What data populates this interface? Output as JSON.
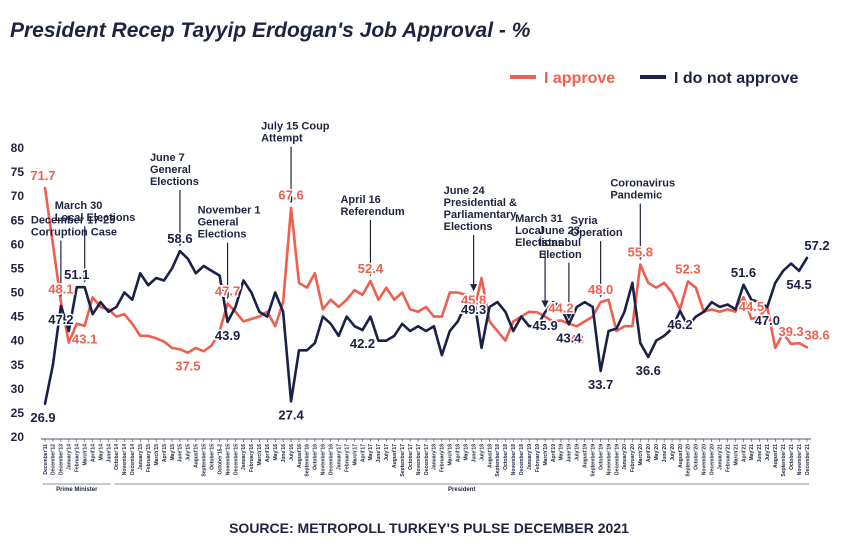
{
  "chart_data": {
    "type": "line",
    "title": "President Recep Tayyip Erdogan's Job Approval - %",
    "source": "SOURCE: METROPOLL TURKEY'S PULSE DECEMBER 2021",
    "ylim": [
      20,
      80
    ],
    "yticks": [
      20,
      25,
      30,
      35,
      40,
      45,
      50,
      55,
      60,
      65,
      70,
      75,
      80
    ],
    "grid": false,
    "legend_position": "top-right",
    "colors": {
      "approve": "#ef5f50",
      "disapprove": "#1a2048",
      "text": "#1d2340"
    },
    "x": [
      "December'11",
      "December'12",
      "December'13",
      "January'14",
      "February'14",
      "March'14",
      "April'14",
      "May'14",
      "June'14",
      "October'14",
      "November'14",
      "December'14",
      "January'15",
      "February'15",
      "March'15",
      "April'15",
      "May'15",
      "June'15",
      "July'15",
      "August'15",
      "September'15",
      "October'15",
      "October'15-2",
      "November'15",
      "December'15",
      "January'16",
      "February'16",
      "March'16",
      "April'16",
      "May'16",
      "June'16",
      "July'16",
      "August'16",
      "September'16",
      "October'16",
      "November'16",
      "December'16",
      "January'17",
      "February'17",
      "March'17",
      "April'17",
      "May'17",
      "June'17",
      "July'17",
      "August'17",
      "September'17",
      "October'17",
      "November'17",
      "December'17",
      "January'18",
      "February'18",
      "March'18",
      "April'18",
      "May'18",
      "June'18",
      "July'18",
      "August'18",
      "September'18",
      "October'18",
      "November'18",
      "December'18",
      "January'19",
      "February'19",
      "March'19",
      "April'19",
      "May'19",
      "June'19",
      "July'19",
      "August'19",
      "September'19",
      "October'19",
      "November'19",
      "December'19",
      "January'20",
      "February'20",
      "March'20",
      "April'20",
      "May'20",
      "June'20",
      "July'20",
      "August'20",
      "September'20",
      "October'20",
      "November'20",
      "December'20",
      "January'21",
      "February'21",
      "March'21",
      "April'21",
      "May'21",
      "June'21",
      "July'21",
      "August'21",
      "September'21",
      "October'21",
      "November'21",
      "December'21"
    ],
    "period_labels": [
      {
        "label": "Prime Minister",
        "from": 0,
        "to": 8
      },
      {
        "label": "President",
        "from": 9,
        "to": 96
      }
    ],
    "series": [
      {
        "name": "I approve",
        "values": [
          71.7,
          60.0,
          48.1,
          39.6,
          43.5,
          43.1,
          49.0,
          47.0,
          46.5,
          45.0,
          45.5,
          43.5,
          41.0,
          41.0,
          40.5,
          39.8,
          38.5,
          38.2,
          37.5,
          38.5,
          37.8,
          39.0,
          42.0,
          47.7,
          46.0,
          44.0,
          44.5,
          45.0,
          46.0,
          43.0,
          48.0,
          67.6,
          52.0,
          51.0,
          54.0,
          46.5,
          48.5,
          47.0,
          48.5,
          50.5,
          49.5,
          52.4,
          48.5,
          51.0,
          48.5,
          50.0,
          46.5,
          46.0,
          47.0,
          45.0,
          45.0,
          50.0,
          50.0,
          49.5,
          45.8,
          53.0,
          44.0,
          42.0,
          40.0,
          44.0,
          45.0,
          46.0,
          45.9,
          45.0,
          44.0,
          44.2,
          43.5,
          43.0,
          44.0,
          45.0,
          48.0,
          48.5,
          42.0,
          43.0,
          43.0,
          55.8,
          52.0,
          51.0,
          52.0,
          50.0,
          46.5,
          52.3,
          51.0,
          46.0,
          46.5,
          46.0,
          46.5,
          46.0,
          49.0,
          44.5,
          45.0,
          47.0,
          38.5,
          41.5,
          39.3,
          39.5,
          38.6
        ],
        "labels": [
          {
            "index": 0,
            "text": "71.7"
          },
          {
            "index": 2,
            "text": "48.1"
          },
          {
            "index": 5,
            "text": "43.1"
          },
          {
            "index": 18,
            "text": "37.5"
          },
          {
            "index": 23,
            "text": "47.7"
          },
          {
            "index": 31,
            "text": "67.6"
          },
          {
            "index": 41,
            "text": "52.4"
          },
          {
            "index": 54,
            "text": "45.8"
          },
          {
            "index": 65,
            "text": "44.2"
          },
          {
            "index": 67,
            "text": "43"
          },
          {
            "index": 70,
            "text": "48.0"
          },
          {
            "index": 75,
            "text": "55.8"
          },
          {
            "index": 81,
            "text": "52.3"
          },
          {
            "index": 89,
            "text": "44.5"
          },
          {
            "index": 94,
            "text": "39.3"
          },
          {
            "index": 96,
            "text": "38.6"
          }
        ]
      },
      {
        "name": "I do not approve",
        "values": [
          26.9,
          35.0,
          47.2,
          42.0,
          51.1,
          51.1,
          45.5,
          48.0,
          46.0,
          47.0,
          50.0,
          48.5,
          54.0,
          51.5,
          53.0,
          52.5,
          55.0,
          58.6,
          57.0,
          54.0,
          55.5,
          54.5,
          53.5,
          43.9,
          47.0,
          52.5,
          50.0,
          46.0,
          45.0,
          50.0,
          46.0,
          27.4,
          38.0,
          38.0,
          39.5,
          45.0,
          43.5,
          41.0,
          45.0,
          43.0,
          42.2,
          45.0,
          40.0,
          40.0,
          41.0,
          43.5,
          42.0,
          43.0,
          42.0,
          43.0,
          37.0,
          42.0,
          44.0,
          47.5,
          49.3,
          38.5,
          47.0,
          48.0,
          46.0,
          42.0,
          45.0,
          43.0,
          43.0,
          45.9,
          48.0,
          47.0,
          43.4,
          47.0,
          48.0,
          47.0,
          33.7,
          42.0,
          42.5,
          46.0,
          52.0,
          39.5,
          36.6,
          40.0,
          41.0,
          42.5,
          46.2,
          43.0,
          45.0,
          46.0,
          48.0,
          47.0,
          47.5,
          46.5,
          51.6,
          48.5,
          48.0,
          47.0,
          52.0,
          54.5,
          56.0,
          54.5,
          57.2
        ],
        "labels": [
          {
            "index": 0,
            "text": "26.9"
          },
          {
            "index": 2,
            "text": "47.2"
          },
          {
            "index": 4,
            "text": "51.1"
          },
          {
            "index": 17,
            "text": "58.6"
          },
          {
            "index": 23,
            "text": "43.9"
          },
          {
            "index": 31,
            "text": "27.4"
          },
          {
            "index": 40,
            "text": "42.2"
          },
          {
            "index": 54,
            "text": "49.3"
          },
          {
            "index": 63,
            "text": "45.9"
          },
          {
            "index": 66,
            "text": "43.4"
          },
          {
            "index": 70,
            "text": "33.7"
          },
          {
            "index": 76,
            "text": "36.6"
          },
          {
            "index": 80,
            "text": "46.2"
          },
          {
            "index": 88,
            "text": "51.6"
          },
          {
            "index": 91,
            "text": "47.0"
          },
          {
            "index": 95,
            "text": "54.5"
          },
          {
            "index": 96,
            "text": "57.2"
          }
        ]
      }
    ],
    "annotations": [
      {
        "lines": [
          "December 17-25",
          "Corruption Case"
        ],
        "index": 2
      },
      {
        "lines": [
          "March 30",
          "Local Elections"
        ],
        "index": 5
      },
      {
        "lines": [
          "June 7",
          "General",
          "Elections"
        ],
        "index": 17
      },
      {
        "lines": [
          "November 1",
          "General",
          "Elections"
        ],
        "index": 23
      },
      {
        "lines": [
          "July 15 Coup",
          "Attempt"
        ],
        "index": 31
      },
      {
        "lines": [
          "April 16",
          "Referendum"
        ],
        "index": 41
      },
      {
        "lines": [
          "June 24",
          "Presidential &",
          "Parliamentary",
          "Elections"
        ],
        "index": 54
      },
      {
        "lines": [
          "March 31",
          "Local",
          "Elections"
        ],
        "index": 63
      },
      {
        "lines": [
          "June 23",
          "İstanbul",
          "Election"
        ],
        "index": 66
      },
      {
        "lines": [
          "Syria",
          "Operation"
        ],
        "index": 70
      },
      {
        "lines": [
          "Coronavirus",
          "Pandemic"
        ],
        "index": 75
      }
    ]
  }
}
